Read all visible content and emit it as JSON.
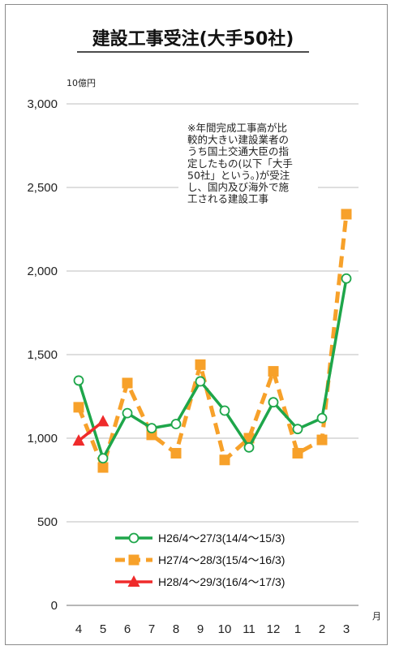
{
  "chart_data": {
    "type": "line",
    "title": "建設工事受注(大手50社)",
    "ylabel": "10億円",
    "xlabel": "月",
    "ylim": [
      0,
      3000
    ],
    "yticks": [
      "0",
      "500",
      "1,000",
      "1,500",
      "2,000",
      "2,500",
      "3,000"
    ],
    "ytick_values": [
      0,
      500,
      1000,
      1500,
      2000,
      2500,
      3000
    ],
    "categories": [
      "4",
      "5",
      "6",
      "7",
      "8",
      "9",
      "10",
      "11",
      "12",
      "1",
      "2",
      "3"
    ],
    "grid": true,
    "legend_position": "bottom",
    "annotation": [
      "※年間完成工事高が比",
      "較的大きい建設業者の",
      "うち国土交通大臣の指",
      "定したもの(以下「大手",
      "50社」という。)が受注",
      "し、国内及び海外で施",
      "工される建設工事"
    ],
    "series": [
      {
        "name": "H26/4～27/3(14/4～15/3)",
        "color": "#1ea64a",
        "style": "solid",
        "marker": "circle",
        "values": [
          1345,
          880,
          1150,
          1060,
          1085,
          1340,
          1165,
          945,
          1215,
          1055,
          1120,
          1955
        ]
      },
      {
        "name": "H27/4～28/3(15/4～16/3)",
        "color": "#f7a12a",
        "style": "dashed",
        "marker": "square",
        "values": [
          1185,
          825,
          1330,
          1020,
          910,
          1440,
          870,
          1000,
          1400,
          910,
          990,
          2340
        ]
      },
      {
        "name": "H28/4～29/3(16/4～17/3)",
        "color": "#ef2b2b",
        "style": "solid",
        "marker": "triangle",
        "values": [
          985,
          1100,
          null,
          null,
          null,
          null,
          null,
          null,
          null,
          null,
          null,
          null
        ]
      }
    ]
  }
}
